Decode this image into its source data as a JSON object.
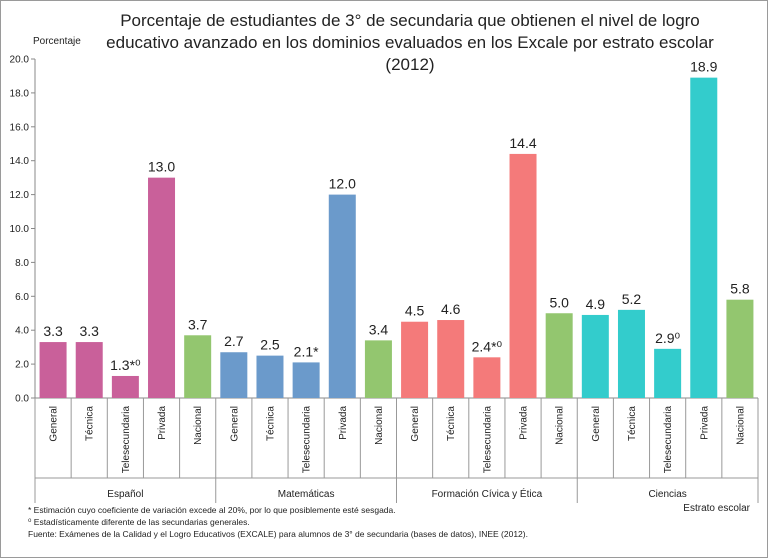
{
  "chart_data": {
    "type": "bar",
    "title": "Porcentaje de estudiantes de 3° de secundaria que obtienen el nivel de logro educativo avanzado en los dominios evaluados en los Excale por estrato escolar (2012)",
    "ylabel": "Porcentaje",
    "xlabel": "Estrato escolar",
    "ylim": [
      0,
      20
    ],
    "yticks": [
      "0.0",
      "2.0",
      "4.0",
      "6.0",
      "8.0",
      "10.0",
      "12.0",
      "14.0",
      "16.0",
      "18.0",
      "20.0"
    ],
    "grid": false,
    "legend": "none",
    "categories": [
      "General",
      "Técnica",
      "Telesecundaria",
      "Privada",
      "Nacional"
    ],
    "groups": [
      {
        "name": "Español",
        "values": [
          3.3,
          3.3,
          1.3,
          13.0,
          3.7
        ],
        "labels": [
          "3.3",
          "3.3",
          "1.3*⁰",
          "13.0",
          "3.7"
        ],
        "color": "#c9609a",
        "nacional_color": "#93c66f"
      },
      {
        "name": "Matemáticas",
        "values": [
          2.7,
          2.5,
          2.1,
          12.0,
          3.4
        ],
        "labels": [
          "2.7",
          "2.5",
          "2.1*",
          "12.0",
          "3.4"
        ],
        "color": "#6b9acb",
        "nacional_color": "#93c66f"
      },
      {
        "name": "Formación Cívica y Ética",
        "values": [
          4.5,
          4.6,
          2.4,
          14.4,
          5.0
        ],
        "labels": [
          "4.5",
          "4.6",
          "2.4*⁰",
          "14.4",
          "5.0"
        ],
        "color": "#f47a7a",
        "nacional_color": "#93c66f"
      },
      {
        "name": "Ciencias",
        "values": [
          4.9,
          5.2,
          2.9,
          18.9,
          5.8
        ],
        "labels": [
          "4.9",
          "5.2",
          "2.9⁰",
          "18.9",
          "5.8"
        ],
        "color": "#33cccc",
        "nacional_color": "#93c66f"
      }
    ]
  },
  "notes": [
    "* Estimación cuyo coeficiente de variación excede al 20%, por lo que posiblemente esté sesgada.",
    "⁰ Estadísticamente diferente de las secundarias generales.",
    "Fuente: Exámenes de la Calidad y el Logro Educativos (EXCALE) para alumnos de 3° de secundaria (bases de datos), INEE (2012)."
  ]
}
